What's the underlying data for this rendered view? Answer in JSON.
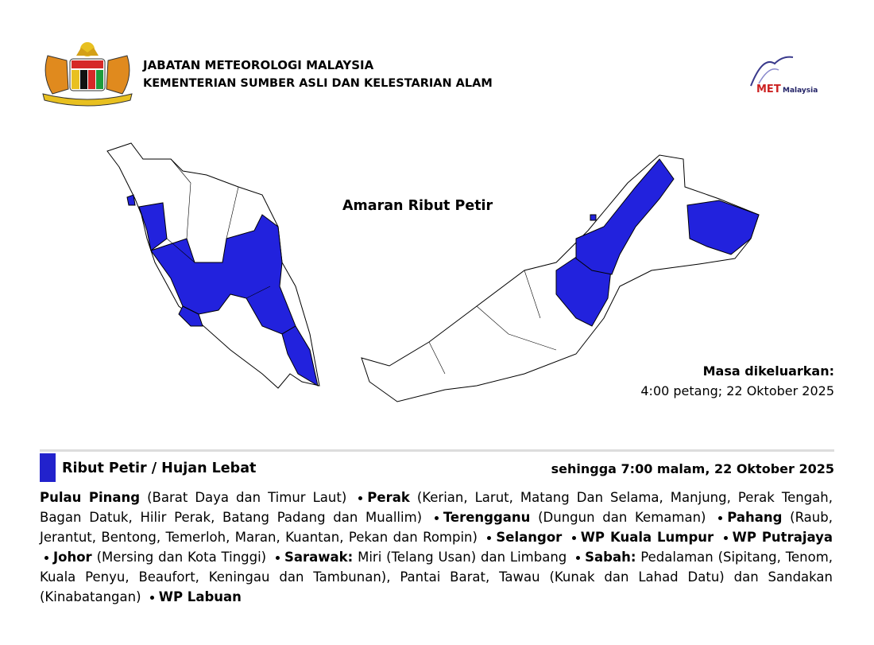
{
  "header": {
    "agency": "JABATAN METEOROLOGI MALAYSIA",
    "ministry": "KEMENTERIAN SUMBER ASLI DAN KELESTARIAN ALAM",
    "logo_main": "MET",
    "logo_sub": "Malaysia"
  },
  "map": {
    "title": "Amaran Ribut Petir"
  },
  "issued": {
    "label": "Masa dikeluarkan:",
    "time": "4:00 petang; 22 Oktober 2025"
  },
  "warning": {
    "title": "Ribut Petir / Hujan Lebat",
    "until": "sehingga 7:00 malam, 22 Oktober 2025",
    "areas": [
      {
        "state": "Pulau Pinang",
        "detail": "(Barat Daya dan Timur Laut)"
      },
      {
        "state": "Perak",
        "detail": "(Kerian, Larut, Matang Dan Selama, Manjung, Perak Tengah, Bagan Datuk, Hilir Perak, Batang Padang dan Muallim)"
      },
      {
        "state": "Terengganu",
        "detail": "(Dungun dan Kemaman)"
      },
      {
        "state": "Pahang",
        "detail": "(Raub, Jerantut, Bentong, Temerloh, Maran, Kuantan, Pekan dan Rompin)"
      },
      {
        "state": "Selangor"
      },
      {
        "state": "WP Kuala Lumpur"
      },
      {
        "state": "WP Putrajaya"
      },
      {
        "state": "Johor",
        "detail": "(Mersing dan Kota Tinggi)"
      },
      {
        "state": "Sarawak:",
        "detail": "Miri (Telang Usan) dan Limbang"
      },
      {
        "state": "Sabah:",
        "detail": "Pedalaman (Sipitang, Tenom, Kuala Penyu, Beaufort, Keningau dan Tambunan), Pantai Barat, Tawau (Kunak dan Lahad Datu) dan Sandakan (Kinabatangan)"
      },
      {
        "state": "WP Labuan"
      }
    ]
  }
}
